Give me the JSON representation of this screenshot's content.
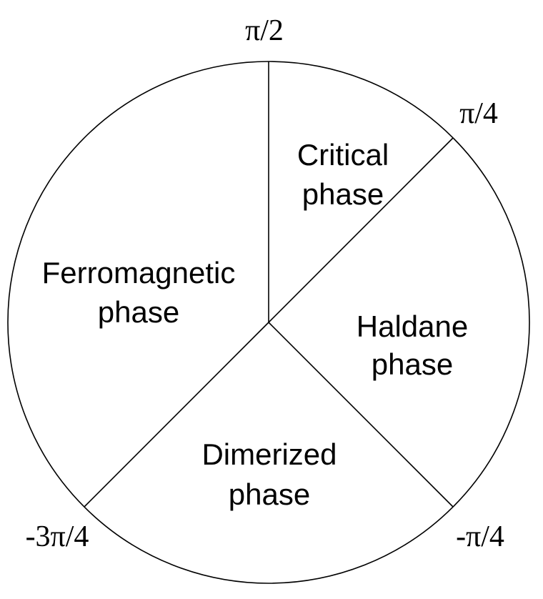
{
  "diagram": {
    "colors": {
      "line": "#000000",
      "background": "#ffffff"
    },
    "angles": {
      "top": "π/2",
      "upper_right": "π/4",
      "lower_right": "-π/4",
      "lower_left": "-3π/4"
    },
    "phases": {
      "critical": {
        "line1": "Critical",
        "line2": "phase"
      },
      "haldane": {
        "line1": "Haldane",
        "line2": "phase"
      },
      "dimerized": {
        "line1": "Dimerized",
        "line2": "phase"
      },
      "ferromagnetic": {
        "line1": "Ferromagnetic",
        "line2": "phase"
      }
    }
  }
}
